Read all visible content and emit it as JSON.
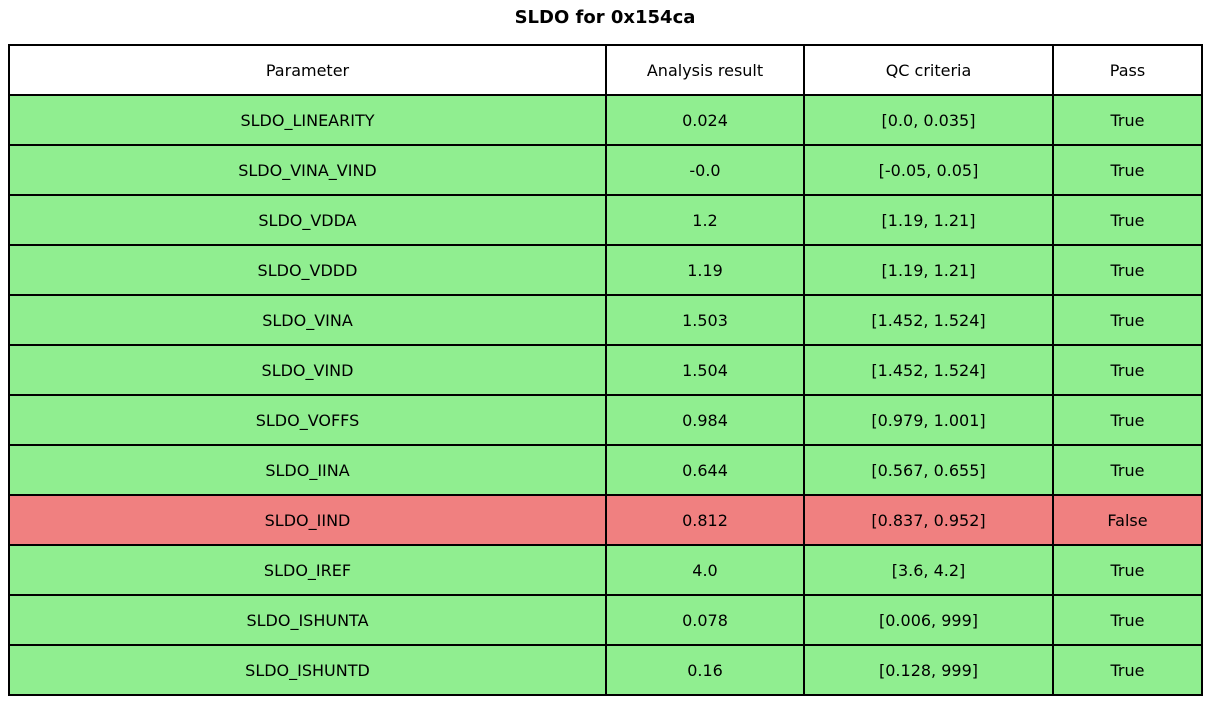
{
  "title": "SLDO for 0x154ca",
  "colors": {
    "pass_row": "#90ee90",
    "fail_row": "#f08080",
    "header_bg": "#ffffff",
    "border": "#000000",
    "text": "#000000"
  },
  "chart_data": {
    "type": "table",
    "title": "SLDO for 0x154ca",
    "columns": [
      "Parameter",
      "Analysis result",
      "QC criteria",
      "Pass"
    ],
    "rows": [
      [
        "SLDO_LINEARITY",
        "0.024",
        "[0.0, 0.035]",
        "True"
      ],
      [
        "SLDO_VINA_VIND",
        "-0.0",
        "[-0.05, 0.05]",
        "True"
      ],
      [
        "SLDO_VDDA",
        "1.2",
        "[1.19, 1.21]",
        "True"
      ],
      [
        "SLDO_VDDD",
        "1.19",
        "[1.19, 1.21]",
        "True"
      ],
      [
        "SLDO_VINA",
        "1.503",
        "[1.452, 1.524]",
        "True"
      ],
      [
        "SLDO_VIND",
        "1.504",
        "[1.452, 1.524]",
        "True"
      ],
      [
        "SLDO_VOFFS",
        "0.984",
        "[0.979, 1.001]",
        "True"
      ],
      [
        "SLDO_IINA",
        "0.644",
        "[0.567, 0.655]",
        "True"
      ],
      [
        "SLDO_IIND",
        "0.812",
        "[0.837, 0.952]",
        "False"
      ],
      [
        "SLDO_IREF",
        "4.0",
        "[3.6, 4.2]",
        "True"
      ],
      [
        "SLDO_ISHUNTA",
        "0.078",
        "[0.006, 999]",
        "True"
      ],
      [
        "SLDO_ISHUNTD",
        "0.16",
        "[0.128, 999]",
        "True"
      ]
    ],
    "row_status": [
      "pass",
      "pass",
      "pass",
      "pass",
      "pass",
      "pass",
      "pass",
      "pass",
      "fail",
      "pass",
      "pass",
      "pass"
    ],
    "layout": {
      "grid": false,
      "legend": "none"
    }
  }
}
